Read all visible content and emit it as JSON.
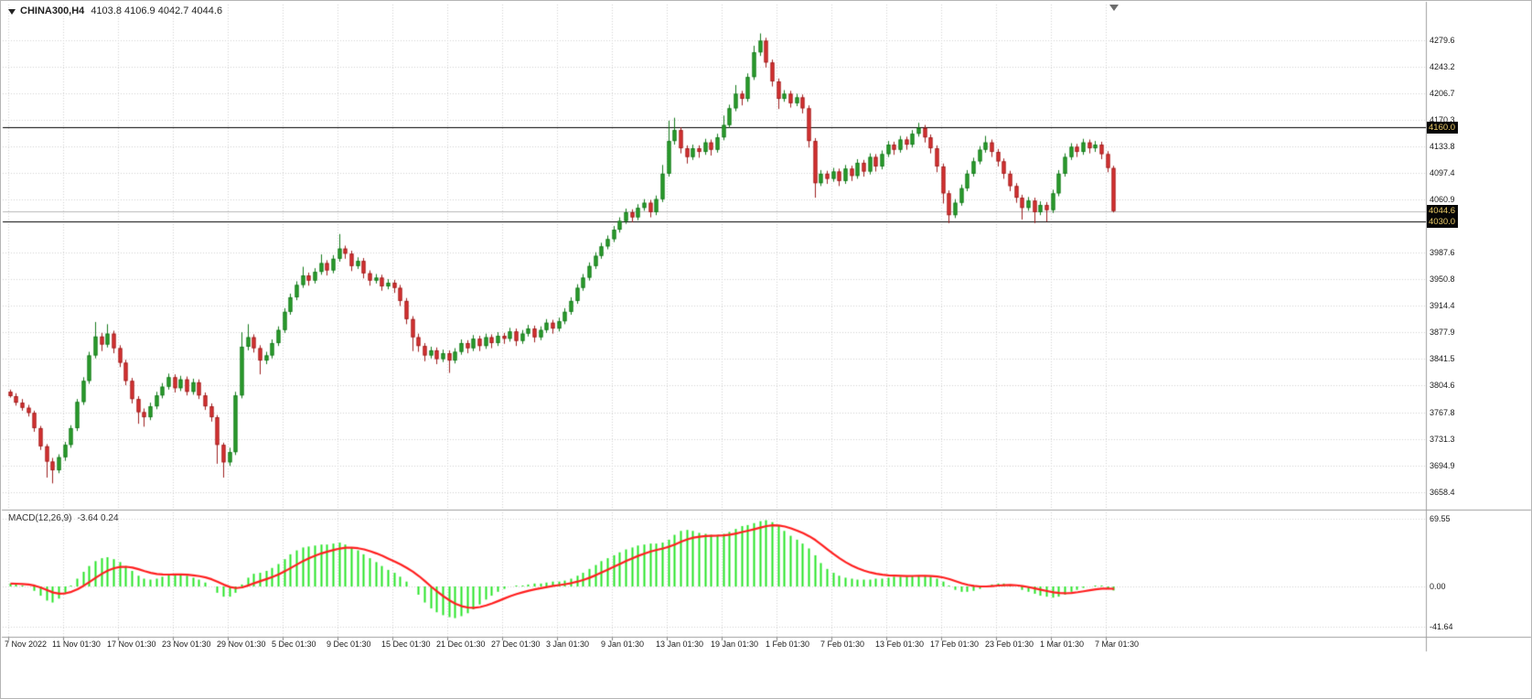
{
  "header": {
    "symbol": "CHINA300,H4",
    "ohlc": "4103.8 4106.9 4042.7 4044.6"
  },
  "chart_data": {
    "type": "candlestick",
    "symbol": "CHINA300",
    "timeframe": "H4",
    "last_ohlc": {
      "open": 4103.8,
      "high": 4106.9,
      "low": 4042.7,
      "close": 4044.6
    },
    "price_axis": {
      "labels": [
        "4279.6",
        "4243.2",
        "4206.7",
        "4170.3",
        "4133.8",
        "4097.4",
        "4060.9",
        "3987.6",
        "3950.8",
        "3914.4",
        "3877.9",
        "3841.5",
        "3804.6",
        "3767.8",
        "3731.3",
        "3694.9",
        "3658.4"
      ],
      "badges": [
        {
          "text": "4160.0",
          "price": 4160.0
        },
        {
          "text": "4044.6",
          "price": 4044.6
        },
        {
          "text": "4030.0",
          "price": 4030.0
        }
      ]
    },
    "hlines": [
      4160.0,
      4030.0
    ],
    "bid_line": 4044.6,
    "time_axis": [
      "7 Nov 2022",
      "11 Nov 01:30",
      "17 Nov 01:30",
      "23 Nov 01:30",
      "29 Nov 01:30",
      "5 Dec 01:30",
      "9 Dec 01:30",
      "15 Dec 01:30",
      "21 Dec 01:30",
      "27 Dec 01:30",
      "3 Jan 01:30",
      "9 Jan 01:30",
      "13 Jan 01:30",
      "19 Jan 01:30",
      "1 Feb 01:30",
      "7 Feb 01:30",
      "13 Feb 01:30",
      "17 Feb 01:30",
      "23 Feb 01:30",
      "1 Mar 01:30",
      "7 Mar 01:30"
    ],
    "candles": [
      [
        3796,
        3799,
        3788,
        3790
      ],
      [
        3790,
        3794,
        3777,
        3781
      ],
      [
        3781,
        3786,
        3770,
        3774
      ],
      [
        3774,
        3778,
        3762,
        3767
      ],
      [
        3767,
        3770,
        3741,
        3746
      ],
      [
        3746,
        3749,
        3716,
        3721
      ],
      [
        3721,
        3724,
        3678,
        3700
      ],
      [
        3700,
        3705,
        3670,
        3688
      ],
      [
        3688,
        3710,
        3684,
        3706
      ],
      [
        3706,
        3727,
        3701,
        3723
      ],
      [
        3723,
        3750,
        3719,
        3746
      ],
      [
        3746,
        3786,
        3742,
        3782
      ],
      [
        3782,
        3816,
        3778,
        3811
      ],
      [
        3811,
        3851,
        3807,
        3846
      ],
      [
        3846,
        3892,
        3842,
        3872
      ],
      [
        3872,
        3877,
        3852,
        3861
      ],
      [
        3861,
        3889,
        3857,
        3876
      ],
      [
        3876,
        3880,
        3849,
        3856
      ],
      [
        3856,
        3860,
        3830,
        3836
      ],
      [
        3836,
        3840,
        3805,
        3811
      ],
      [
        3811,
        3815,
        3780,
        3786
      ],
      [
        3786,
        3790,
        3752,
        3768
      ],
      [
        3768,
        3773,
        3748,
        3761
      ],
      [
        3761,
        3781,
        3757,
        3776
      ],
      [
        3776,
        3796,
        3772,
        3791
      ],
      [
        3791,
        3808,
        3787,
        3803
      ],
      [
        3803,
        3821,
        3799,
        3816
      ],
      [
        3816,
        3820,
        3795,
        3801
      ],
      [
        3801,
        3818,
        3797,
        3813
      ],
      [
        3813,
        3817,
        3791,
        3796
      ],
      [
        3796,
        3814,
        3792,
        3809
      ],
      [
        3809,
        3813,
        3786,
        3791
      ],
      [
        3791,
        3795,
        3771,
        3776
      ],
      [
        3776,
        3780,
        3755,
        3761
      ],
      [
        3761,
        3764,
        3697,
        3723
      ],
      [
        3723,
        3726,
        3678,
        3699
      ],
      [
        3699,
        3719,
        3694,
        3713
      ],
      [
        3713,
        3796,
        3709,
        3791
      ],
      [
        3791,
        3878,
        3787,
        3858
      ],
      [
        3858,
        3889,
        3853,
        3871
      ],
      [
        3871,
        3875,
        3850,
        3856
      ],
      [
        3856,
        3860,
        3820,
        3839
      ],
      [
        3839,
        3851,
        3834,
        3846
      ],
      [
        3846,
        3868,
        3842,
        3863
      ],
      [
        3863,
        3886,
        3859,
        3881
      ],
      [
        3881,
        3911,
        3877,
        3906
      ],
      [
        3906,
        3931,
        3902,
        3926
      ],
      [
        3926,
        3948,
        3922,
        3943
      ],
      [
        3943,
        3968,
        3939,
        3956
      ],
      [
        3956,
        3960,
        3942,
        3949
      ],
      [
        3949,
        3966,
        3945,
        3961
      ],
      [
        3961,
        3985,
        3957,
        3973
      ],
      [
        3973,
        3977,
        3956,
        3963
      ],
      [
        3963,
        3984,
        3959,
        3979
      ],
      [
        3979,
        4013,
        3975,
        3993
      ],
      [
        3993,
        3997,
        3979,
        3986
      ],
      [
        3986,
        3990,
        3962,
        3969
      ],
      [
        3969,
        3981,
        3965,
        3976
      ],
      [
        3976,
        3980,
        3952,
        3959
      ],
      [
        3959,
        3963,
        3942,
        3949
      ],
      [
        3949,
        3958,
        3945,
        3953
      ],
      [
        3953,
        3957,
        3935,
        3941
      ],
      [
        3941,
        3951,
        3937,
        3946
      ],
      [
        3946,
        3950,
        3932,
        3939
      ],
      [
        3939,
        3943,
        3914,
        3921
      ],
      [
        3921,
        3925,
        3889,
        3896
      ],
      [
        3896,
        3900,
        3852,
        3871
      ],
      [
        3871,
        3876,
        3851,
        3859
      ],
      [
        3859,
        3863,
        3838,
        3846
      ],
      [
        3846,
        3858,
        3842,
        3853
      ],
      [
        3853,
        3857,
        3834,
        3841
      ],
      [
        3841,
        3854,
        3837,
        3849
      ],
      [
        3849,
        3853,
        3822,
        3839
      ],
      [
        3839,
        3856,
        3835,
        3851
      ],
      [
        3851,
        3868,
        3847,
        3863
      ],
      [
        3863,
        3867,
        3849,
        3856
      ],
      [
        3856,
        3874,
        3852,
        3869
      ],
      [
        3869,
        3873,
        3852,
        3859
      ],
      [
        3859,
        3876,
        3855,
        3871
      ],
      [
        3871,
        3875,
        3856,
        3863
      ],
      [
        3863,
        3878,
        3859,
        3873
      ],
      [
        3873,
        3877,
        3862,
        3869
      ],
      [
        3869,
        3884,
        3865,
        3879
      ],
      [
        3879,
        3883,
        3859,
        3866
      ],
      [
        3866,
        3881,
        3862,
        3876
      ],
      [
        3876,
        3888,
        3872,
        3883
      ],
      [
        3883,
        3887,
        3864,
        3871
      ],
      [
        3871,
        3886,
        3867,
        3881
      ],
      [
        3881,
        3896,
        3877,
        3891
      ],
      [
        3891,
        3895,
        3876,
        3883
      ],
      [
        3883,
        3898,
        3879,
        3893
      ],
      [
        3893,
        3911,
        3889,
        3906
      ],
      [
        3906,
        3926,
        3902,
        3921
      ],
      [
        3921,
        3944,
        3917,
        3939
      ],
      [
        3939,
        3958,
        3935,
        3953
      ],
      [
        3953,
        3974,
        3949,
        3969
      ],
      [
        3969,
        3988,
        3965,
        3983
      ],
      [
        3983,
        4001,
        3979,
        3996
      ],
      [
        3996,
        4011,
        3992,
        4006
      ],
      [
        4006,
        4024,
        4002,
        4019
      ],
      [
        4019,
        4036,
        4015,
        4031
      ],
      [
        4031,
        4048,
        4027,
        4043
      ],
      [
        4043,
        4047,
        4029,
        4036
      ],
      [
        4036,
        4054,
        4032,
        4049
      ],
      [
        4049,
        4061,
        4045,
        4056
      ],
      [
        4056,
        4060,
        4036,
        4043
      ],
      [
        4043,
        4066,
        4039,
        4061
      ],
      [
        4061,
        4108,
        4057,
        4096
      ],
      [
        4096,
        4169,
        4092,
        4141
      ],
      [
        4141,
        4173,
        4136,
        4156
      ],
      [
        4156,
        4160,
        4124,
        4131
      ],
      [
        4131,
        4135,
        4110,
        4119
      ],
      [
        4119,
        4136,
        4115,
        4131
      ],
      [
        4131,
        4135,
        4118,
        4126
      ],
      [
        4126,
        4144,
        4122,
        4139
      ],
      [
        4139,
        4143,
        4121,
        4129
      ],
      [
        4129,
        4151,
        4125,
        4146
      ],
      [
        4146,
        4176,
        4142,
        4163
      ],
      [
        4163,
        4191,
        4159,
        4186
      ],
      [
        4186,
        4218,
        4182,
        4206
      ],
      [
        4206,
        4210,
        4190,
        4199
      ],
      [
        4199,
        4234,
        4195,
        4229
      ],
      [
        4229,
        4272,
        4225,
        4263
      ],
      [
        4263,
        4289,
        4258,
        4279
      ],
      [
        4279,
        4283,
        4242,
        4249
      ],
      [
        4249,
        4253,
        4216,
        4223
      ],
      [
        4223,
        4227,
        4185,
        4199
      ],
      [
        4199,
        4211,
        4195,
        4206
      ],
      [
        4206,
        4210,
        4187,
        4193
      ],
      [
        4193,
        4206,
        4189,
        4201
      ],
      [
        4201,
        4205,
        4179,
        4186
      ],
      [
        4186,
        4190,
        4132,
        4141
      ],
      [
        4141,
        4145,
        4063,
        4083
      ],
      [
        4083,
        4101,
        4079,
        4096
      ],
      [
        4096,
        4100,
        4082,
        4089
      ],
      [
        4089,
        4104,
        4085,
        4099
      ],
      [
        4099,
        4103,
        4079,
        4086
      ],
      [
        4086,
        4108,
        4082,
        4103
      ],
      [
        4103,
        4107,
        4086,
        4093
      ],
      [
        4093,
        4116,
        4089,
        4111
      ],
      [
        4111,
        4115,
        4092,
        4099
      ],
      [
        4099,
        4124,
        4095,
        4119
      ],
      [
        4119,
        4123,
        4099,
        4106
      ],
      [
        4106,
        4128,
        4102,
        4123
      ],
      [
        4123,
        4141,
        4119,
        4136
      ],
      [
        4136,
        4140,
        4122,
        4129
      ],
      [
        4129,
        4148,
        4125,
        4143
      ],
      [
        4143,
        4147,
        4129,
        4136
      ],
      [
        4136,
        4156,
        4132,
        4151
      ],
      [
        4151,
        4166,
        4147,
        4159
      ],
      [
        4159,
        4163,
        4139,
        4146
      ],
      [
        4146,
        4150,
        4124,
        4131
      ],
      [
        4131,
        4135,
        4098,
        4106
      ],
      [
        4106,
        4110,
        4055,
        4069
      ],
      [
        4069,
        4073,
        4028,
        4039
      ],
      [
        4039,
        4061,
        4035,
        4056
      ],
      [
        4056,
        4081,
        4052,
        4076
      ],
      [
        4076,
        4101,
        4072,
        4096
      ],
      [
        4096,
        4118,
        4092,
        4113
      ],
      [
        4113,
        4134,
        4109,
        4129
      ],
      [
        4129,
        4148,
        4125,
        4139
      ],
      [
        4139,
        4143,
        4119,
        4126
      ],
      [
        4126,
        4130,
        4106,
        4113
      ],
      [
        4113,
        4117,
        4089,
        4096
      ],
      [
        4096,
        4100,
        4072,
        4079
      ],
      [
        4079,
        4083,
        4056,
        4063
      ],
      [
        4063,
        4067,
        4033,
        4049
      ],
      [
        4049,
        4064,
        4045,
        4059
      ],
      [
        4059,
        4063,
        4028,
        4043
      ],
      [
        4043,
        4058,
        4039,
        4053
      ],
      [
        4053,
        4057,
        4030,
        4046
      ],
      [
        4046,
        4074,
        4042,
        4069
      ],
      [
        4069,
        4101,
        4065,
        4096
      ],
      [
        4096,
        4124,
        4092,
        4119
      ],
      [
        4119,
        4138,
        4115,
        4133
      ],
      [
        4133,
        4137,
        4119,
        4126
      ],
      [
        4126,
        4144,
        4122,
        4139
      ],
      [
        4139,
        4143,
        4124,
        4131
      ],
      [
        4131,
        4141,
        4126,
        4136
      ],
      [
        4136,
        4140,
        4116,
        4123
      ],
      [
        4123,
        4127,
        4098,
        4104
      ],
      [
        4103.8,
        4106.9,
        4042.7,
        4044.6
      ]
    ],
    "macd": {
      "label": "MACD(12,26,9)",
      "values_label": "-3.64 0.24",
      "macd_value": -3.64,
      "signal_value": 0.24,
      "signal_period": 9,
      "scale_labels": [
        "69.55",
        "0.00",
        "-41.64"
      ],
      "histogram": [
        3,
        2,
        1,
        0,
        -4,
        -9,
        -14,
        -16,
        -12,
        -6,
        1,
        8,
        15,
        21,
        26,
        29,
        30,
        28,
        25,
        21,
        16,
        11,
        8,
        7,
        8,
        10,
        12,
        13,
        12,
        11,
        9,
        7,
        4,
        0,
        -6,
        -10,
        -10,
        -6,
        2,
        9,
        13,
        14,
        16,
        19,
        23,
        28,
        33,
        37,
        40,
        41,
        42,
        43,
        43,
        44,
        45,
        43,
        40,
        37,
        33,
        29,
        25,
        21,
        17,
        14,
        10,
        5,
        0,
        -8,
        -16,
        -22,
        -26,
        -29,
        -31,
        -32,
        -30,
        -27,
        -23,
        -18,
        -13,
        -9,
        -5,
        -2,
        0,
        1,
        1,
        2,
        3,
        3,
        4,
        5,
        5,
        6,
        8,
        11,
        14,
        18,
        22,
        26,
        29,
        32,
        35,
        38,
        40,
        42,
        43,
        44,
        44,
        45,
        48,
        53,
        57,
        58,
        57,
        55,
        54,
        53,
        53,
        54,
        56,
        59,
        62,
        63,
        65,
        67,
        68,
        66,
        62,
        57,
        52,
        48,
        44,
        39,
        32,
        24,
        18,
        14,
        11,
        9,
        8,
        7,
        7,
        7,
        8,
        8,
        9,
        10,
        10,
        10,
        11,
        11,
        11,
        10,
        8,
        5,
        1,
        -3,
        -5,
        -5,
        -4,
        -2,
        0,
        2,
        3,
        3,
        2,
        0,
        -3,
        -5,
        -7,
        -9,
        -10,
        -11,
        -10,
        -8,
        -5,
        -3,
        -1,
        0,
        1,
        1,
        -2,
        -3.64
      ]
    },
    "colors": {
      "up_body": "#2fa12f",
      "up_edge": "#157a1c",
      "down_body": "#de3434",
      "down_edge": "#9e1f1f",
      "histogram": "#27e427",
      "signal_line": "#ff1f1f",
      "grid": "#d4d4d4",
      "hline": "#000000",
      "bid_line": "#b9b9b9",
      "badge_bg": "#060606",
      "badge_text": "#e9c967"
    }
  }
}
